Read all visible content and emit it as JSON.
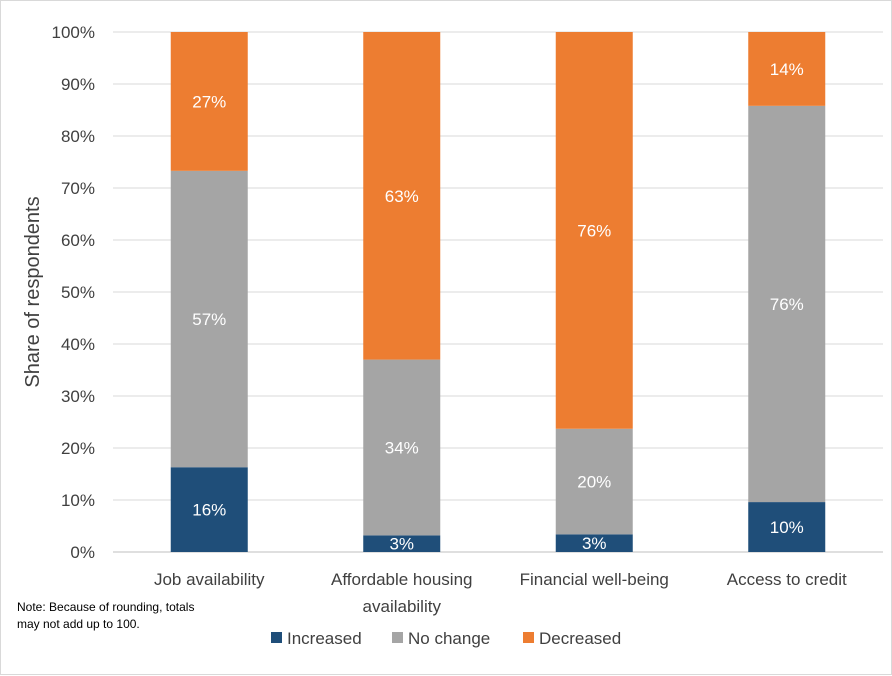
{
  "note": "Note: Because of rounding, totals may not add up to 100.",
  "chart_data": {
    "type": "bar",
    "stacked": true,
    "ylabel": "Share of respondents",
    "ylim": [
      0,
      100
    ],
    "yticks": [
      "0%",
      "10%",
      "20%",
      "30%",
      "40%",
      "50%",
      "60%",
      "70%",
      "80%",
      "90%",
      "100%"
    ],
    "grid": true,
    "legend_position": "bottom",
    "categories": [
      [
        "Job availability"
      ],
      [
        "Affordable housing",
        "availability"
      ],
      [
        "Financial well-being"
      ],
      [
        "Access to credit"
      ]
    ],
    "series": [
      {
        "name": "Increased",
        "color": "#1f4e79",
        "values": [
          16.3,
          3.2,
          3.4,
          9.6
        ],
        "labels": [
          "16%",
          "3%",
          "3%",
          "10%"
        ]
      },
      {
        "name": "No change",
        "color": "#a5a5a5",
        "values": [
          57.0,
          33.8,
          20.3,
          76.2
        ],
        "labels": [
          "57%",
          "34%",
          "20%",
          "76%"
        ]
      },
      {
        "name": "Decreased",
        "color": "#ed7d31",
        "values": [
          26.7,
          63.0,
          76.3,
          14.2
        ],
        "labels": [
          "27%",
          "63%",
          "76%",
          "14%"
        ]
      }
    ]
  }
}
